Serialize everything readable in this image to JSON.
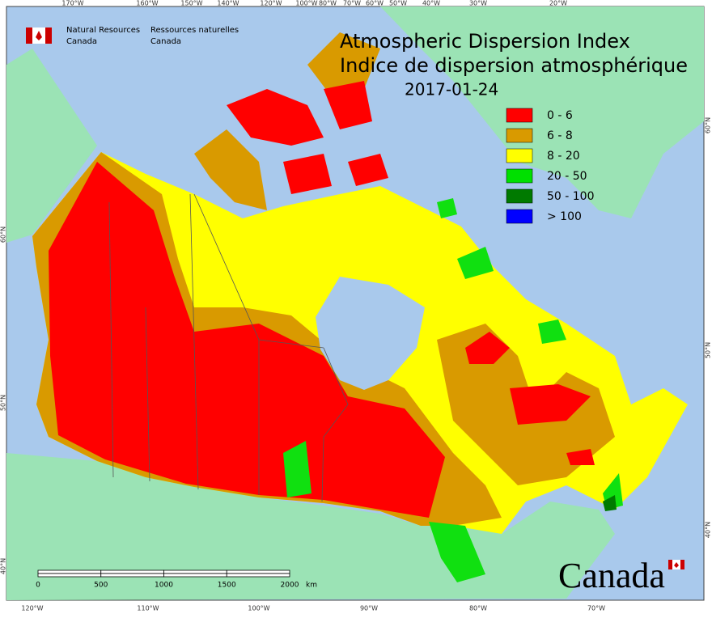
{
  "header": {
    "org_en": [
      "Natural Resources",
      "Canada"
    ],
    "org_fr": [
      "Ressources naturelles",
      "Canada"
    ]
  },
  "title": {
    "en": "Atmospheric Dispersion Index",
    "fr": "Indice de dispersion atmosphérique",
    "date": "2017-01-24"
  },
  "legend": [
    {
      "label": "0 - 6",
      "color": "#ff0000"
    },
    {
      "label": "6 - 8",
      "color": "#d99a00"
    },
    {
      "label": "8 - 20",
      "color": "#ffff00"
    },
    {
      "label": "20 - 50",
      "color": "#00e000"
    },
    {
      "label": "50 - 100",
      "color": "#007a00"
    },
    {
      "label": "> 100",
      "color": "#0000ff"
    }
  ],
  "graticule": {
    "top": [
      "170°W",
      "160°W",
      "150°W",
      "140°W",
      "120°W",
      "100°W",
      "80°W",
      "70°W",
      "60°W",
      "50°W",
      "40°W",
      "30°W",
      "20°W"
    ],
    "bottom": [
      "120°W",
      "110°W",
      "100°W",
      "90°W",
      "80°W",
      "70°W"
    ],
    "left": [
      "60°N",
      "50°N",
      "40°N"
    ],
    "right": [
      "60°N",
      "50°N",
      "40°N"
    ]
  },
  "scale_bar": {
    "ticks": [
      0,
      500,
      1000,
      1500,
      2000
    ],
    "unit": "km"
  },
  "wordmark": "Canada"
}
